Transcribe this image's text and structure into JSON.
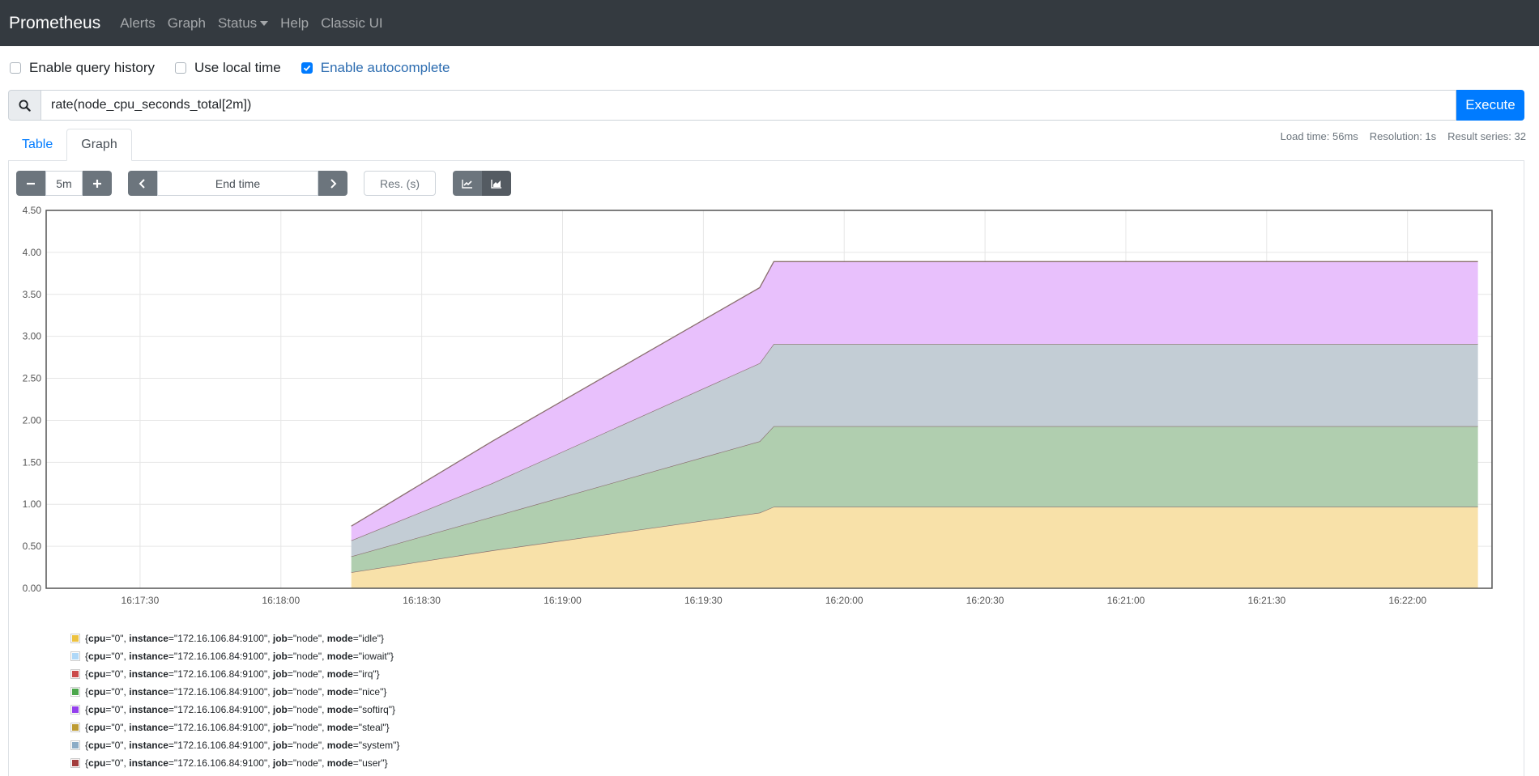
{
  "nav": {
    "brand": "Prometheus",
    "links": [
      "Alerts",
      "Graph",
      "Status",
      "Help",
      "Classic UI"
    ]
  },
  "options": {
    "query_history": {
      "label": "Enable query history",
      "checked": false
    },
    "local_time": {
      "label": "Use local time",
      "checked": false
    },
    "autocomplete": {
      "label": "Enable autocomplete",
      "checked": true
    }
  },
  "query": {
    "value": "rate(node_cpu_seconds_total[2m])",
    "execute_label": "Execute"
  },
  "tabs": [
    "Table",
    "Graph"
  ],
  "active_tab": "Graph",
  "stats": {
    "load_time": "Load time: 56ms",
    "resolution": "Resolution: 1s",
    "result_series": "Result series: 32"
  },
  "controls": {
    "range": "5m",
    "end_time_placeholder": "End time",
    "res_placeholder": "Res. (s)"
  },
  "colors": {
    "accent": "#007bff",
    "navbar": "#343a40"
  },
  "chart_data": {
    "type": "area",
    "stacked": true,
    "x": [
      "16:18:15",
      "16:18:45",
      "16:19:42",
      "16:19:45",
      "16:22:15"
    ],
    "xticks": [
      "16:17:30",
      "16:18:00",
      "16:18:30",
      "16:19:00",
      "16:19:30",
      "16:20:00",
      "16:20:30",
      "16:21:00",
      "16:21:30",
      "16:22:00"
    ],
    "yticks": [
      "0.00",
      "0.50",
      "1.00",
      "1.50",
      "2.00",
      "2.50",
      "3.00",
      "3.50",
      "4.00",
      "4.50"
    ],
    "ylim": [
      0,
      4.5
    ],
    "xlim": [
      "16:17:10",
      "16:22:18"
    ],
    "grid": true,
    "series": [
      {
        "color": "#f8e1a9",
        "values": [
          0.19,
          0.45,
          0.9,
          0.97,
          0.97
        ]
      },
      {
        "color": "#b0ceaf",
        "values": [
          0.19,
          0.4,
          0.85,
          0.96,
          0.96
        ]
      },
      {
        "color": "#c3cdd5",
        "values": [
          0.19,
          0.4,
          0.93,
          0.98,
          0.98
        ]
      },
      {
        "color": "#e8c0fc",
        "values": [
          0.17,
          0.5,
          0.9,
          0.98,
          0.98
        ]
      }
    ],
    "legend": [
      {
        "color": "#edc240",
        "cpu": "0",
        "instance": "172.16.106.84:9100",
        "job": "node",
        "mode": "idle"
      },
      {
        "color": "#afd8f8",
        "cpu": "0",
        "instance": "172.16.106.84:9100",
        "job": "node",
        "mode": "iowait"
      },
      {
        "color": "#cb4b4b",
        "cpu": "0",
        "instance": "172.16.106.84:9100",
        "job": "node",
        "mode": "irq"
      },
      {
        "color": "#4da74d",
        "cpu": "0",
        "instance": "172.16.106.84:9100",
        "job": "node",
        "mode": "nice"
      },
      {
        "color": "#9440ed",
        "cpu": "0",
        "instance": "172.16.106.84:9100",
        "job": "node",
        "mode": "softirq"
      },
      {
        "color": "#bd9b33",
        "cpu": "0",
        "instance": "172.16.106.84:9100",
        "job": "node",
        "mode": "steal"
      },
      {
        "color": "#8cacc6",
        "cpu": "0",
        "instance": "172.16.106.84:9100",
        "job": "node",
        "mode": "system"
      },
      {
        "color": "#a23c3c",
        "cpu": "0",
        "instance": "172.16.106.84:9100",
        "job": "node",
        "mode": "user"
      }
    ]
  }
}
